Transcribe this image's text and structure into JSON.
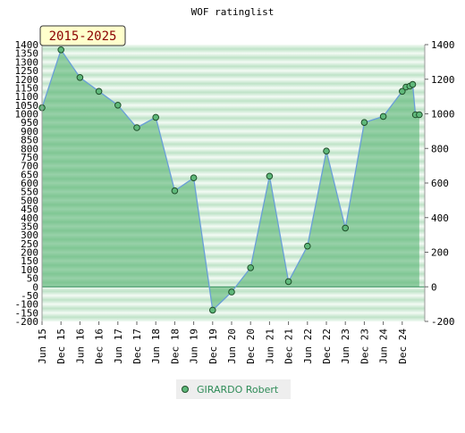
{
  "chart_data": {
    "type": "area",
    "title": "WOF ratinglist",
    "period_badge": "2015-2025",
    "left_ticks": [
      "1400",
      "1350",
      "1300",
      "1250",
      "1200",
      "1150",
      "1100",
      "1050",
      "1000",
      "950",
      "900",
      "850",
      "800",
      "750",
      "700",
      "650",
      "600",
      "550",
      "500",
      "450",
      "400",
      "350",
      "300",
      "250",
      "200",
      "150",
      "100",
      "50",
      "0",
      "-50",
      "-100",
      "-150",
      "-200"
    ],
    "right_ticks": [
      "1400",
      "1200",
      "1000",
      "800",
      "600",
      "400",
      "200",
      "0",
      "-200"
    ],
    "ylim": [
      -200,
      1400
    ],
    "x_ticks": [
      "Jun 15",
      "Dec 15",
      "Jun 16",
      "Dec 16",
      "Jun 17",
      "Dec 17",
      "Jun 18",
      "Dec 18",
      "Jun 19",
      "Dec 19",
      "Jun 20",
      "Dec 20",
      "Jun 21",
      "Dec 21",
      "Jun 22",
      "Dec 22",
      "Jun 23",
      "Dec 23",
      "Jun 24",
      "Dec 24"
    ],
    "series": [
      {
        "name": "GIRARDO Robert",
        "color": "#5fb87a",
        "points": [
          {
            "x": 0,
            "y": 1035
          },
          {
            "x": 1,
            "y": 1370
          },
          {
            "x": 2,
            "y": 1210
          },
          {
            "x": 3,
            "y": 1130
          },
          {
            "x": 4,
            "y": 1050
          },
          {
            "x": 5,
            "y": 920
          },
          {
            "x": 6,
            "y": 980
          },
          {
            "x": 7,
            "y": 555
          },
          {
            "x": 8,
            "y": 630
          },
          {
            "x": 9,
            "y": -135
          },
          {
            "x": 10,
            "y": -30
          },
          {
            "x": 11,
            "y": 110
          },
          {
            "x": 12,
            "y": 640
          },
          {
            "x": 13,
            "y": 30
          },
          {
            "x": 14,
            "y": 235
          },
          {
            "x": 15,
            "y": 785
          },
          {
            "x": 16,
            "y": 340
          },
          {
            "x": 17,
            "y": 950
          },
          {
            "x": 18,
            "y": 985
          },
          {
            "x": 19,
            "y": 1130
          },
          {
            "x": 19.2,
            "y": 1155
          },
          {
            "x": 19.4,
            "y": 1160
          },
          {
            "x": 19.55,
            "y": 1170
          },
          {
            "x": 19.7,
            "y": 995
          },
          {
            "x": 19.9,
            "y": 995
          }
        ]
      }
    ],
    "colors": {
      "line": "#6a9fd8",
      "fill": "#4caf6a",
      "zero_line": "#2e8b57",
      "band_dark": "#bfe3c8",
      "band_light": "#f4fbf5"
    }
  }
}
